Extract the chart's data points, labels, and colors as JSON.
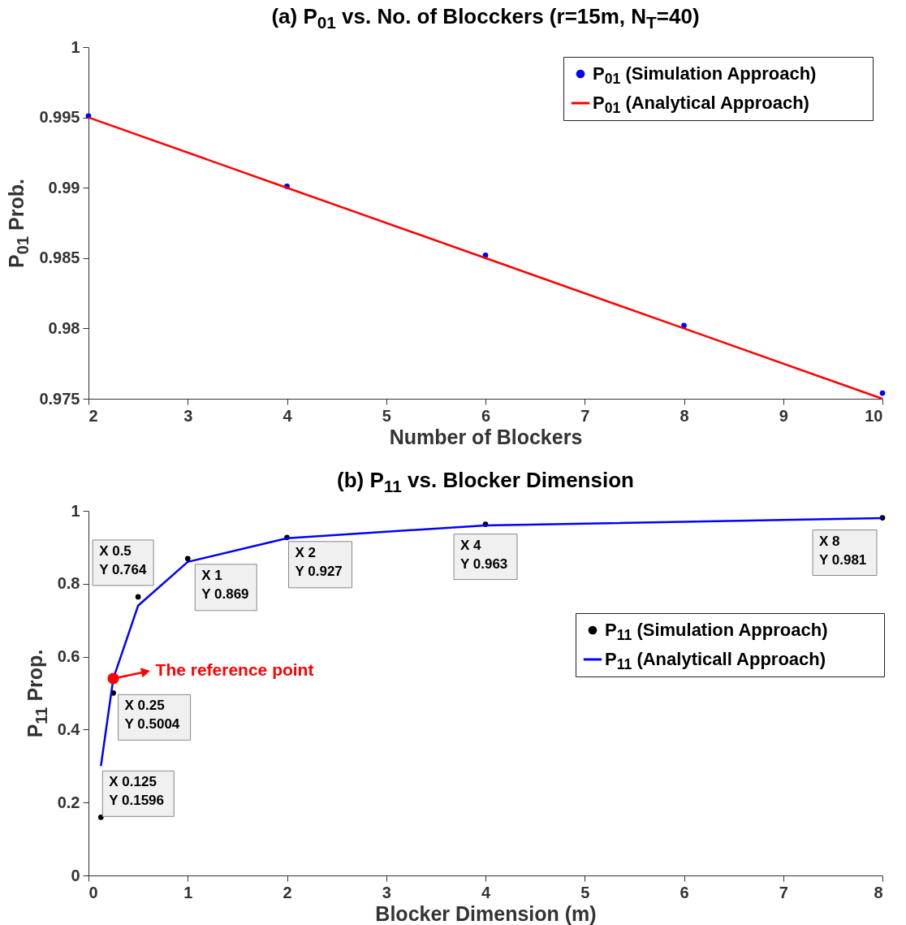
{
  "chart_data": [
    {
      "type": "scatter",
      "title": "(a) P$_{01}$ vs. No. of Blocckers (r=15m, N$_{T}$=40)",
      "xlabel": "Number of Blockers",
      "ylabel": "P$_{01}$ Prob.",
      "x": [
        2,
        4,
        6,
        8,
        10
      ],
      "series": [
        {
          "name": "P$_{01}$ (Simulation Approach)",
          "type": "scatter",
          "marker": "circle",
          "color": "#0000ff",
          "values": [
            0.9951,
            0.9901,
            0.9852,
            0.9802,
            0.9754
          ]
        },
        {
          "name": "P$_{01}$ (Analytical Approach)",
          "type": "line",
          "color": "#ff0000",
          "values": [
            0.995,
            0.99,
            0.985,
            0.98,
            0.975
          ]
        }
      ],
      "xlim": [
        2,
        10
      ],
      "xticks": [
        2,
        3,
        4,
        5,
        6,
        7,
        8,
        9,
        10
      ],
      "ylim": [
        0.975,
        1
      ],
      "yticks": [
        0.975,
        {
          "value": 0.98,
          "label": "0.98"
        },
        0.985,
        {
          "value": 0.99,
          "label": "0.99"
        },
        0.995,
        1
      ],
      "grid": false,
      "legend": "top right"
    },
    {
      "type": "scatter",
      "title": "(b) P$_{11}$ vs. Blocker Dimension",
      "xlabel": "Blocker Dimension (m)",
      "ylabel": "P$_{11}$ Prop.",
      "x": [
        0.125,
        0.25,
        0.5,
        1,
        2,
        4,
        8
      ],
      "series": [
        {
          "name": "P$_{11}$ (Simulation Approach)",
          "type": "scatter",
          "marker": "circle",
          "color": "#000000",
          "values": [
            0.1596,
            0.5004,
            0.764,
            0.869,
            0.927,
            0.963,
            0.981
          ],
          "value_labels": [
            "X 0.125\nY 0.1596",
            "X 0.25\nY 0.5004",
            "X 0.5\nY 0.764",
            "X 1\nY 0.869",
            "X 2\nY 0.927",
            "X 4\nY 0.963",
            "X 8\nY 0.981"
          ]
        },
        {
          "name": "P$_{11}$ (Analyticall Approach)",
          "type": "line",
          "color": "#0000ff",
          "values": [
            0.3,
            0.54,
            0.74,
            0.86,
            0.925,
            0.96,
            0.98
          ]
        }
      ],
      "annotations": [
        {
          "text": "The reference point",
          "x": 0.25,
          "y": 0.54
        }
      ],
      "xlim": [
        0,
        8
      ],
      "xticks": [
        0,
        1,
        2,
        3,
        4,
        5,
        6,
        7,
        8
      ],
      "ylim": [
        0,
        1
      ],
      "yticks": [
        0,
        0.2,
        0.4,
        0.6,
        0.8,
        1
      ],
      "grid": false,
      "legend": "right"
    }
  ]
}
